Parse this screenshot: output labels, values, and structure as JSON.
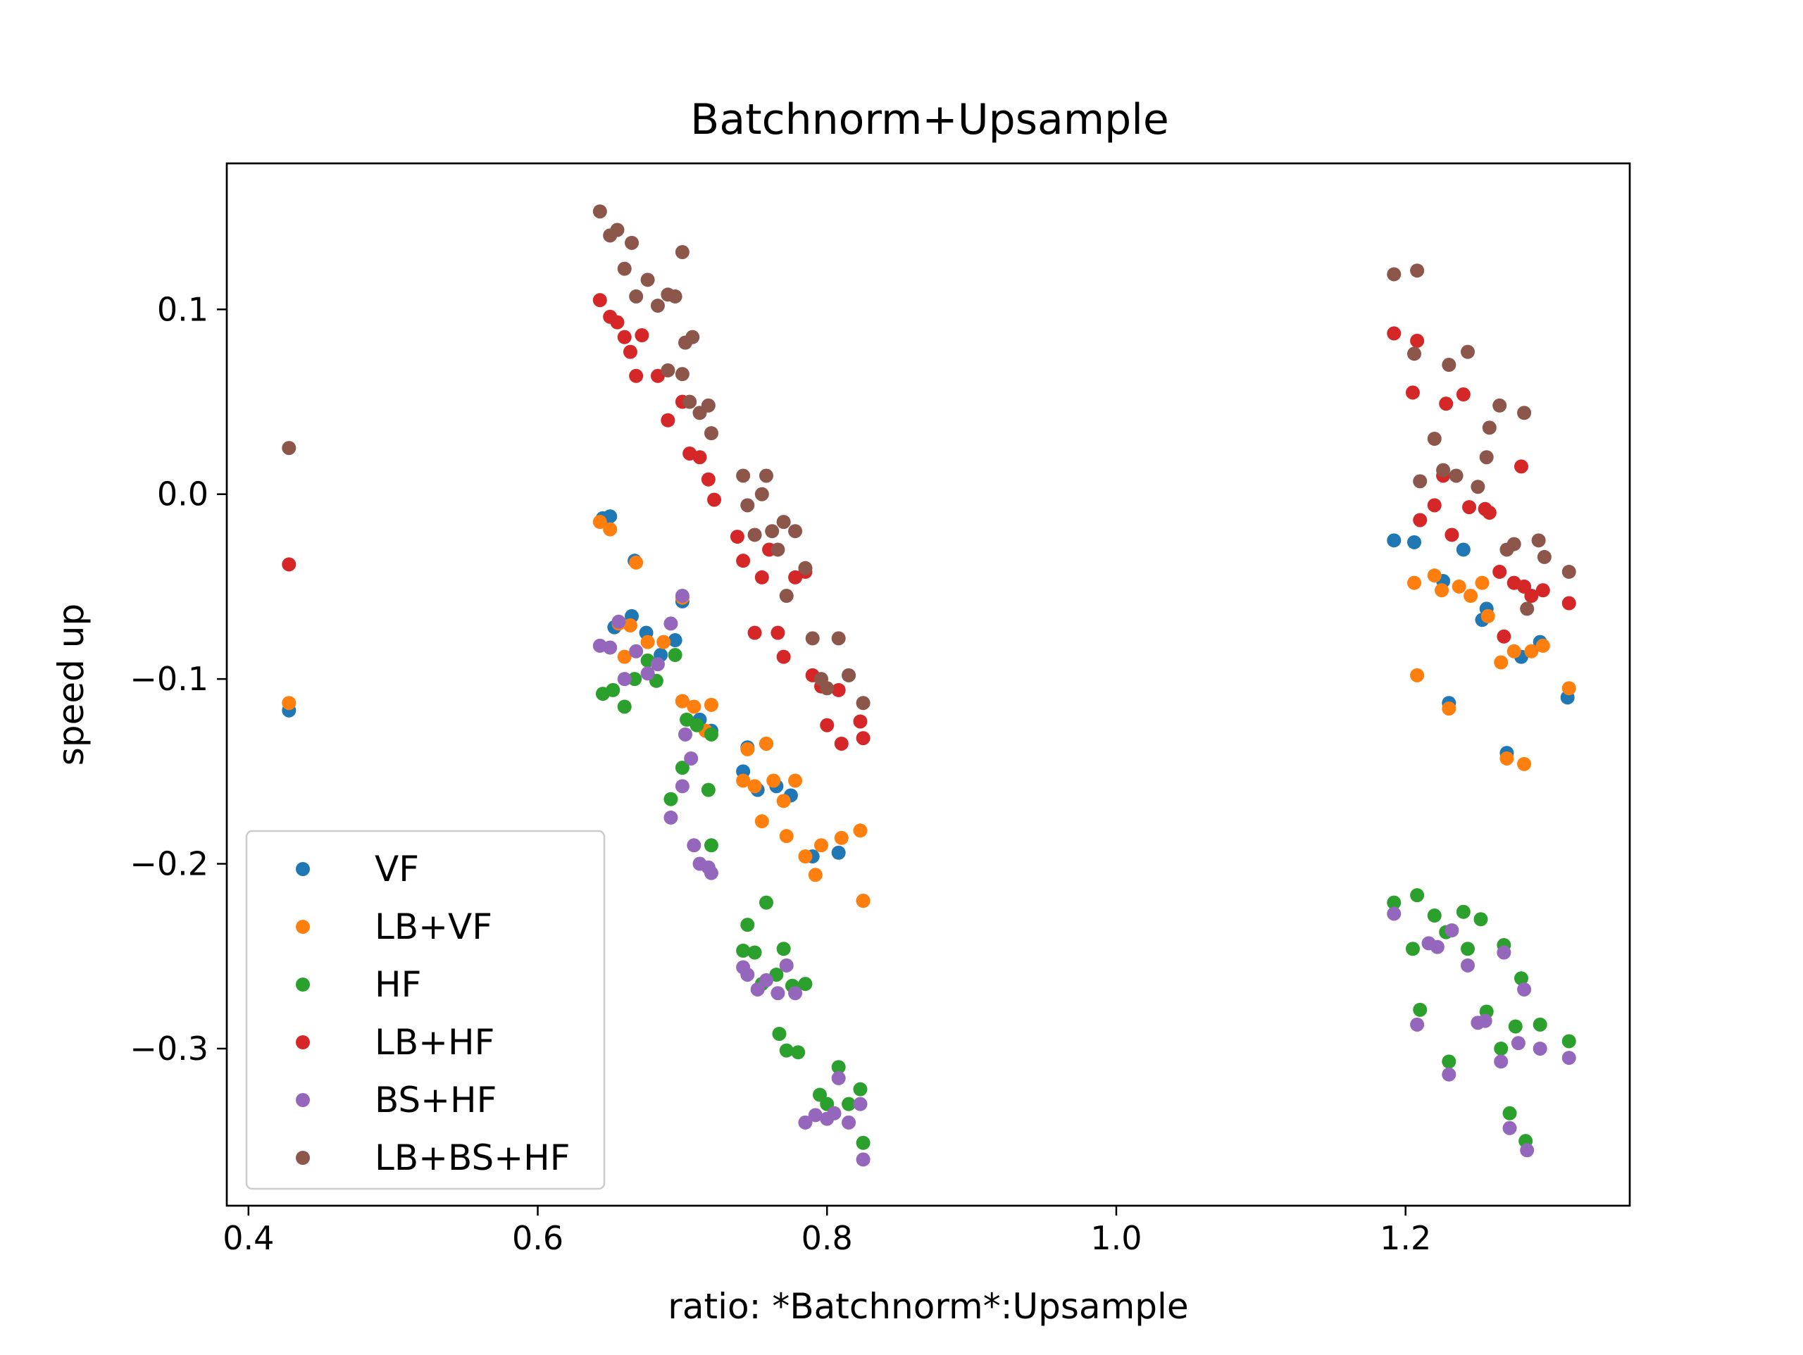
{
  "chart_data": {
    "type": "scatter",
    "title": "Batchnorm+Upsample",
    "xlabel": "ratio: *Batchnorm*:Upsample",
    "ylabel": "speed up",
    "xlim": [
      0.385,
      1.355
    ],
    "ylim": [
      -0.385,
      0.179
    ],
    "x_ticks": [
      0.4,
      0.6,
      0.8,
      1.0,
      1.2
    ],
    "x_tick_labels": [
      "0.4",
      "0.6",
      "0.8",
      "1.0",
      "1.2"
    ],
    "y_ticks": [
      -0.3,
      -0.2,
      -0.1,
      0.0,
      0.1
    ],
    "y_tick_labels": [
      "−0.3",
      "−0.2",
      "−0.1",
      "0.0",
      "0.1"
    ],
    "grid": false,
    "legend_position": "lower-left",
    "series": [
      {
        "name": "VF",
        "color": "#1f77b4",
        "points": [
          [
            0.428,
            -0.117
          ],
          [
            0.645,
            -0.013
          ],
          [
            0.65,
            -0.012
          ],
          [
            0.667,
            -0.036
          ],
          [
            0.653,
            -0.072
          ],
          [
            0.665,
            -0.066
          ],
          [
            0.675,
            -0.075
          ],
          [
            0.685,
            -0.087
          ],
          [
            0.695,
            -0.079
          ],
          [
            0.7,
            -0.058
          ],
          [
            0.7,
            -0.112
          ],
          [
            0.712,
            -0.122
          ],
          [
            0.72,
            -0.128
          ],
          [
            0.745,
            -0.137
          ],
          [
            0.758,
            -0.135
          ],
          [
            0.742,
            -0.15
          ],
          [
            0.752,
            -0.16
          ],
          [
            0.765,
            -0.158
          ],
          [
            0.775,
            -0.163
          ],
          [
            0.79,
            -0.196
          ],
          [
            0.808,
            -0.194
          ],
          [
            0.825,
            -0.22
          ],
          [
            1.192,
            -0.025
          ],
          [
            1.206,
            -0.026
          ],
          [
            1.226,
            -0.047
          ],
          [
            1.24,
            -0.03
          ],
          [
            1.253,
            -0.068
          ],
          [
            1.256,
            -0.062
          ],
          [
            1.27,
            -0.14
          ],
          [
            1.28,
            -0.088
          ],
          [
            1.293,
            -0.08
          ],
          [
            1.312,
            -0.11
          ],
          [
            1.23,
            -0.113
          ]
        ]
      },
      {
        "name": "LB+VF",
        "color": "#ff7f0e",
        "points": [
          [
            0.428,
            -0.113
          ],
          [
            0.643,
            -0.015
          ],
          [
            0.65,
            -0.019
          ],
          [
            0.668,
            -0.037
          ],
          [
            0.656,
            -0.07
          ],
          [
            0.664,
            -0.071
          ],
          [
            0.66,
            -0.088
          ],
          [
            0.676,
            -0.08
          ],
          [
            0.687,
            -0.08
          ],
          [
            0.7,
            -0.056
          ],
          [
            0.7,
            -0.112
          ],
          [
            0.708,
            -0.115
          ],
          [
            0.716,
            -0.128
          ],
          [
            0.72,
            -0.114
          ],
          [
            0.745,
            -0.138
          ],
          [
            0.758,
            -0.135
          ],
          [
            0.742,
            -0.155
          ],
          [
            0.75,
            -0.158
          ],
          [
            0.755,
            -0.177
          ],
          [
            0.763,
            -0.155
          ],
          [
            0.77,
            -0.166
          ],
          [
            0.778,
            -0.155
          ],
          [
            0.772,
            -0.185
          ],
          [
            0.785,
            -0.196
          ],
          [
            0.792,
            -0.206
          ],
          [
            0.796,
            -0.19
          ],
          [
            0.81,
            -0.186
          ],
          [
            0.823,
            -0.182
          ],
          [
            0.825,
            -0.22
          ],
          [
            1.206,
            -0.048
          ],
          [
            1.208,
            -0.098
          ],
          [
            1.22,
            -0.044
          ],
          [
            1.225,
            -0.052
          ],
          [
            1.23,
            -0.116
          ],
          [
            1.237,
            -0.05
          ],
          [
            1.245,
            -0.055
          ],
          [
            1.253,
            -0.048
          ],
          [
            1.257,
            -0.066
          ],
          [
            1.266,
            -0.091
          ],
          [
            1.27,
            -0.143
          ],
          [
            1.275,
            -0.085
          ],
          [
            1.282,
            -0.146
          ],
          [
            1.287,
            -0.085
          ],
          [
            1.295,
            -0.082
          ],
          [
            1.313,
            -0.105
          ]
        ]
      },
      {
        "name": "HF",
        "color": "#2ca02c",
        "points": [
          [
            0.645,
            -0.108
          ],
          [
            0.652,
            -0.106
          ],
          [
            0.66,
            -0.115
          ],
          [
            0.667,
            -0.1
          ],
          [
            0.676,
            -0.09
          ],
          [
            0.682,
            -0.101
          ],
          [
            0.695,
            -0.087
          ],
          [
            0.7,
            -0.148
          ],
          [
            0.703,
            -0.122
          ],
          [
            0.71,
            -0.125
          ],
          [
            0.72,
            -0.13
          ],
          [
            0.718,
            -0.16
          ],
          [
            0.692,
            -0.165
          ],
          [
            0.72,
            -0.19
          ],
          [
            0.742,
            -0.247
          ],
          [
            0.745,
            -0.233
          ],
          [
            0.75,
            -0.248
          ],
          [
            0.755,
            -0.265
          ],
          [
            0.758,
            -0.221
          ],
          [
            0.765,
            -0.26
          ],
          [
            0.77,
            -0.246
          ],
          [
            0.776,
            -0.266
          ],
          [
            0.767,
            -0.292
          ],
          [
            0.772,
            -0.301
          ],
          [
            0.78,
            -0.302
          ],
          [
            0.785,
            -0.265
          ],
          [
            0.795,
            -0.325
          ],
          [
            0.8,
            -0.33
          ],
          [
            0.808,
            -0.31
          ],
          [
            0.815,
            -0.33
          ],
          [
            0.823,
            -0.322
          ],
          [
            0.825,
            -0.351
          ],
          [
            1.192,
            -0.221
          ],
          [
            1.205,
            -0.246
          ],
          [
            1.208,
            -0.217
          ],
          [
            1.21,
            -0.279
          ],
          [
            1.22,
            -0.228
          ],
          [
            1.228,
            -0.237
          ],
          [
            1.23,
            -0.307
          ],
          [
            1.24,
            -0.226
          ],
          [
            1.243,
            -0.246
          ],
          [
            1.252,
            -0.23
          ],
          [
            1.256,
            -0.28
          ],
          [
            1.266,
            -0.3
          ],
          [
            1.268,
            -0.244
          ],
          [
            1.272,
            -0.335
          ],
          [
            1.276,
            -0.288
          ],
          [
            1.28,
            -0.262
          ],
          [
            1.283,
            -0.35
          ],
          [
            1.293,
            -0.287
          ],
          [
            1.313,
            -0.296
          ]
        ]
      },
      {
        "name": "LB+HF",
        "color": "#d62728",
        "points": [
          [
            0.428,
            -0.038
          ],
          [
            0.643,
            0.105
          ],
          [
            0.65,
            0.096
          ],
          [
            0.655,
            0.093
          ],
          [
            0.66,
            0.085
          ],
          [
            0.664,
            0.077
          ],
          [
            0.672,
            0.086
          ],
          [
            0.668,
            0.064
          ],
          [
            0.683,
            0.064
          ],
          [
            0.69,
            0.04
          ],
          [
            0.7,
            0.05
          ],
          [
            0.705,
            0.022
          ],
          [
            0.712,
            0.02
          ],
          [
            0.718,
            0.008
          ],
          [
            0.722,
            -0.003
          ],
          [
            0.738,
            -0.023
          ],
          [
            0.742,
            -0.036
          ],
          [
            0.75,
            -0.075
          ],
          [
            0.755,
            -0.045
          ],
          [
            0.76,
            -0.03
          ],
          [
            0.766,
            -0.075
          ],
          [
            0.77,
            -0.088
          ],
          [
            0.778,
            -0.045
          ],
          [
            0.785,
            -0.042
          ],
          [
            0.79,
            -0.098
          ],
          [
            0.796,
            -0.104
          ],
          [
            0.8,
            -0.125
          ],
          [
            0.808,
            -0.106
          ],
          [
            0.81,
            -0.135
          ],
          [
            0.823,
            -0.123
          ],
          [
            0.825,
            -0.132
          ],
          [
            1.192,
            0.087
          ],
          [
            1.205,
            0.055
          ],
          [
            1.208,
            0.083
          ],
          [
            1.21,
            -0.014
          ],
          [
            1.22,
            -0.006
          ],
          [
            1.226,
            0.01
          ],
          [
            1.228,
            0.049
          ],
          [
            1.232,
            -0.022
          ],
          [
            1.24,
            0.054
          ],
          [
            1.244,
            -0.007
          ],
          [
            1.255,
            -0.008
          ],
          [
            1.258,
            -0.01
          ],
          [
            1.265,
            -0.042
          ],
          [
            1.268,
            -0.077
          ],
          [
            1.275,
            -0.048
          ],
          [
            1.28,
            0.015
          ],
          [
            1.282,
            -0.05
          ],
          [
            1.287,
            -0.055
          ],
          [
            1.295,
            -0.052
          ],
          [
            1.313,
            -0.059
          ]
        ]
      },
      {
        "name": "BS+HF",
        "color": "#9467bd",
        "points": [
          [
            0.643,
            -0.082
          ],
          [
            0.65,
            -0.083
          ],
          [
            0.656,
            -0.069
          ],
          [
            0.66,
            -0.1
          ],
          [
            0.668,
            -0.085
          ],
          [
            0.676,
            -0.097
          ],
          [
            0.683,
            -0.092
          ],
          [
            0.692,
            -0.07
          ],
          [
            0.7,
            -0.055
          ],
          [
            0.702,
            -0.13
          ],
          [
            0.706,
            -0.143
          ],
          [
            0.692,
            -0.175
          ],
          [
            0.7,
            -0.158
          ],
          [
            0.708,
            -0.19
          ],
          [
            0.712,
            -0.2
          ],
          [
            0.718,
            -0.202
          ],
          [
            0.72,
            -0.205
          ],
          [
            0.742,
            -0.256
          ],
          [
            0.745,
            -0.26
          ],
          [
            0.752,
            -0.268
          ],
          [
            0.758,
            -0.263
          ],
          [
            0.766,
            -0.27
          ],
          [
            0.772,
            -0.255
          ],
          [
            0.778,
            -0.27
          ],
          [
            0.785,
            -0.34
          ],
          [
            0.792,
            -0.336
          ],
          [
            0.8,
            -0.338
          ],
          [
            0.805,
            -0.335
          ],
          [
            0.808,
            -0.316
          ],
          [
            0.815,
            -0.34
          ],
          [
            0.823,
            -0.33
          ],
          [
            0.825,
            -0.36
          ],
          [
            1.192,
            -0.227
          ],
          [
            1.208,
            -0.287
          ],
          [
            1.216,
            -0.243
          ],
          [
            1.222,
            -0.245
          ],
          [
            1.23,
            -0.314
          ],
          [
            1.232,
            -0.236
          ],
          [
            1.243,
            -0.255
          ],
          [
            1.25,
            -0.286
          ],
          [
            1.255,
            -0.285
          ],
          [
            1.266,
            -0.307
          ],
          [
            1.268,
            -0.248
          ],
          [
            1.272,
            -0.343
          ],
          [
            1.278,
            -0.297
          ],
          [
            1.282,
            -0.268
          ],
          [
            1.284,
            -0.355
          ],
          [
            1.293,
            -0.3
          ],
          [
            1.313,
            -0.305
          ]
        ]
      },
      {
        "name": "LB+BS+HF",
        "color": "#8c564b",
        "points": [
          [
            0.428,
            0.025
          ],
          [
            0.643,
            0.153
          ],
          [
            0.65,
            0.14
          ],
          [
            0.655,
            0.143
          ],
          [
            0.66,
            0.122
          ],
          [
            0.665,
            0.136
          ],
          [
            0.668,
            0.107
          ],
          [
            0.676,
            0.116
          ],
          [
            0.683,
            0.102
          ],
          [
            0.69,
            0.108
          ],
          [
            0.695,
            0.107
          ],
          [
            0.7,
            0.131
          ],
          [
            0.702,
            0.082
          ],
          [
            0.707,
            0.085
          ],
          [
            0.69,
            0.067
          ],
          [
            0.7,
            0.065
          ],
          [
            0.705,
            0.05
          ],
          [
            0.712,
            0.044
          ],
          [
            0.718,
            0.048
          ],
          [
            0.72,
            0.033
          ],
          [
            0.742,
            0.01
          ],
          [
            0.745,
            -0.006
          ],
          [
            0.75,
            -0.022
          ],
          [
            0.755,
            0.0
          ],
          [
            0.758,
            0.01
          ],
          [
            0.762,
            -0.02
          ],
          [
            0.766,
            -0.03
          ],
          [
            0.77,
            -0.015
          ],
          [
            0.772,
            -0.055
          ],
          [
            0.778,
            -0.02
          ],
          [
            0.785,
            -0.04
          ],
          [
            0.79,
            -0.078
          ],
          [
            0.796,
            -0.1
          ],
          [
            0.8,
            -0.105
          ],
          [
            0.808,
            -0.078
          ],
          [
            0.815,
            -0.098
          ],
          [
            0.825,
            -0.113
          ],
          [
            1.192,
            0.119
          ],
          [
            1.206,
            0.076
          ],
          [
            1.208,
            0.121
          ],
          [
            1.21,
            0.007
          ],
          [
            1.22,
            0.03
          ],
          [
            1.226,
            0.013
          ],
          [
            1.23,
            0.07
          ],
          [
            1.235,
            0.01
          ],
          [
            1.243,
            0.077
          ],
          [
            1.25,
            0.004
          ],
          [
            1.256,
            0.02
          ],
          [
            1.258,
            0.036
          ],
          [
            1.265,
            0.048
          ],
          [
            1.27,
            -0.03
          ],
          [
            1.275,
            -0.027
          ],
          [
            1.282,
            0.044
          ],
          [
            1.284,
            -0.062
          ],
          [
            1.292,
            -0.025
          ],
          [
            1.296,
            -0.034
          ],
          [
            1.313,
            -0.042
          ]
        ]
      }
    ]
  }
}
